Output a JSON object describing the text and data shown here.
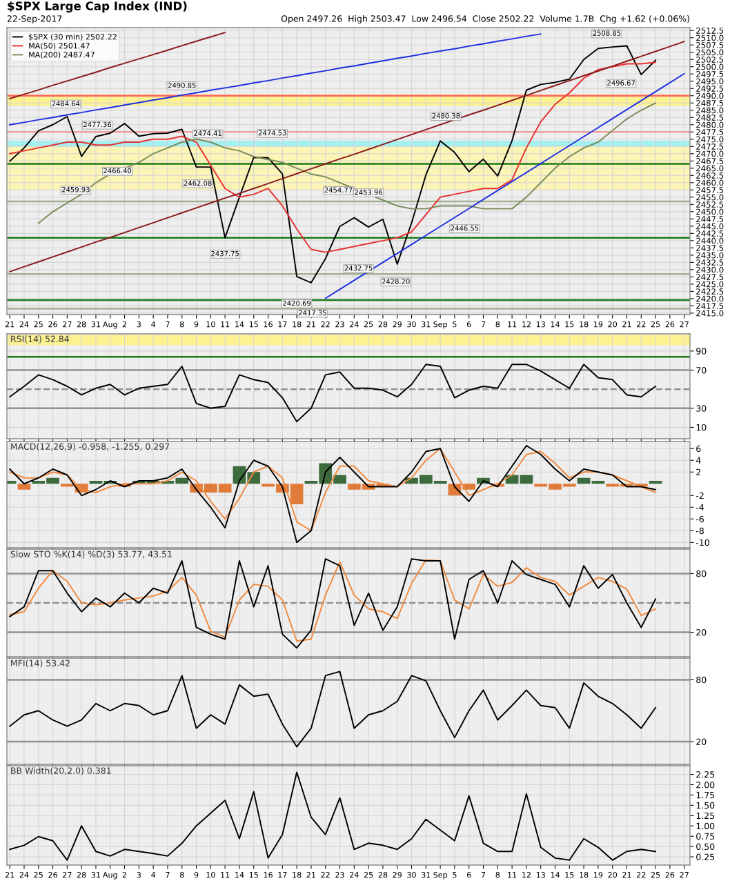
{
  "chart_data": [
    {
      "type": "line",
      "title": "$SPX Large Cap Index (IND)",
      "subtitle": "22-Sep-2017",
      "categories": [
        "21",
        "24",
        "25",
        "26",
        "27",
        "28",
        "31",
        "Aug",
        "2",
        "3",
        "4",
        "7",
        "8",
        "9",
        "10",
        "11",
        "14",
        "15",
        "16",
        "17",
        "18",
        "21",
        "22",
        "23",
        "24",
        "25",
        "28",
        "29",
        "30",
        "31",
        "Sep",
        "5",
        "6",
        "7",
        "8",
        "11",
        "12",
        "13",
        "14",
        "15",
        "18",
        "19",
        "20",
        "21",
        "22",
        "25",
        "26",
        "27"
      ],
      "ylim": [
        2414.5,
        2513.5
      ],
      "yticks": [
        {
          "value": 2415,
          "label": "2415.0"
        },
        {
          "value": 2417.5,
          "label": "2417.5"
        },
        {
          "value": 2420,
          "label": "2420.0"
        },
        {
          "value": 2422.5,
          "label": "2422.5"
        },
        {
          "value": 2425,
          "label": "2425.0"
        },
        {
          "value": 2427.5,
          "label": "2427.5"
        },
        {
          "value": 2430,
          "label": "2430.0"
        },
        {
          "value": 2432.5,
          "label": "2432.5"
        },
        {
          "value": 2435,
          "label": "2435.0"
        },
        {
          "value": 2437.5,
          "label": "2437.5"
        },
        {
          "value": 2440,
          "label": "2440.0"
        },
        {
          "value": 2442.5,
          "label": "2442.5"
        },
        {
          "value": 2445,
          "label": "2445.0"
        },
        {
          "value": 2447.5,
          "label": "2447.5"
        },
        {
          "value": 2450,
          "label": "2450.0"
        },
        {
          "value": 2452.5,
          "label": "2452.5"
        },
        {
          "value": 2455,
          "label": "2455.0"
        },
        {
          "value": 2457.5,
          "label": "2457.5"
        },
        {
          "value": 2460,
          "label": "2460.0"
        },
        {
          "value": 2462.5,
          "label": "2462.5"
        },
        {
          "value": 2465,
          "label": "2465.0"
        },
        {
          "value": 2467.5,
          "label": "2467.5"
        },
        {
          "value": 2470,
          "label": "2470.0"
        },
        {
          "value": 2472.5,
          "label": "2472.5"
        },
        {
          "value": 2475,
          "label": "2475.0"
        },
        {
          "value": 2477.5,
          "label": "2477.5"
        },
        {
          "value": 2480,
          "label": "2480.0"
        },
        {
          "value": 2482.5,
          "label": "2482.5"
        },
        {
          "value": 2485,
          "label": "2485.0"
        },
        {
          "value": 2487.5,
          "label": "2487.5"
        },
        {
          "value": 2490,
          "label": "2490.0"
        },
        {
          "value": 2492.5,
          "label": "2492.5"
        },
        {
          "value": 2495,
          "label": "2495.0"
        },
        {
          "value": 2497.5,
          "label": "2497.5"
        },
        {
          "value": 2500,
          "label": "2500.0"
        },
        {
          "value": 2502.5,
          "label": "2502.5"
        },
        {
          "value": 2505,
          "label": "2505.0"
        },
        {
          "value": 2507.5,
          "label": "2507.5"
        },
        {
          "value": 2510,
          "label": "2510.0"
        },
        {
          "value": 2512.5,
          "label": "2512.5"
        }
      ],
      "grid": true,
      "legend": "top left",
      "series": [
        {
          "name": "$SPX (30 min) 2502.22",
          "color": "#000000",
          "values": [
            2467.4,
            2472.0,
            2477.9,
            2480.0,
            2482.8,
            2469.1,
            2475.9,
            2477.1,
            2480.4,
            2476.0,
            2476.9,
            2477.1,
            2478.4,
            2465.4,
            2465.4,
            2441.0,
            2455.0,
            2468.7,
            2468.6,
            2463.0,
            2427.6,
            2425.5,
            2433.8,
            2444.9,
            2447.9,
            2444.7,
            2447.4,
            2431.9,
            2446.1,
            2462.7,
            2474.4,
            2470.4,
            2463.8,
            2468.1,
            2462.3,
            2474.5,
            2491.9,
            2493.9,
            2494.6,
            2495.7,
            2502.5,
            2506.3,
            2506.8,
            2507.2,
            2497.3,
            2502.2,
            null,
            null
          ]
        },
        {
          "name": "MA(50) 2501.47",
          "color": "#e83030",
          "values": [
            2470,
            2471,
            2472,
            2473,
            2474,
            2474,
            2473,
            2473,
            2474,
            2474,
            2475,
            2475,
            2476,
            2474,
            2466,
            2458,
            2455,
            2456,
            2458,
            2452,
            2444,
            2437,
            2436,
            2437,
            2438,
            2439,
            2440,
            2441,
            2443,
            2449,
            2455,
            2456,
            2457,
            2458,
            2458,
            2461,
            2472,
            2481,
            2487,
            2491,
            2496,
            2499,
            2500,
            2501,
            2501,
            2501.5,
            null,
            null
          ]
        },
        {
          "name": "MA(200) 2487.47",
          "color": "#7a8a5a",
          "values": [
            null,
            null,
            2446,
            2450,
            2453,
            2456,
            2460,
            2463,
            2465,
            2467,
            2470,
            2472,
            2474,
            2475,
            2474,
            2472,
            2471,
            2469,
            2468,
            2467,
            2465,
            2463,
            2462,
            2460,
            2458,
            2456,
            2454,
            2452,
            2451,
            2451,
            2452,
            2452,
            2452,
            2451,
            2451,
            2451,
            2455,
            2460,
            2465,
            2469,
            2472,
            2474,
            2478,
            2482,
            2485,
            2487.5,
            null,
            null
          ]
        },
        {
          "color": "#1f2fe0",
          "values": [
            2480,
            2480.8,
            2481.7,
            2482.5,
            2483.4,
            2484.2,
            2485.1,
            2485.9,
            2486.8,
            2487.6,
            2488.5,
            2489.3,
            2490.2,
            2491.0,
            2491.9,
            2492.7,
            2493.5,
            2494.4,
            2495.2,
            2496.1,
            2496.9,
            2497.8,
            2498.6,
            2499.5,
            2500.3,
            2501.2,
            2502.0,
            2502.9,
            2503.7,
            2504.6,
            2505.4,
            2506.2,
            2507.1,
            2507.9,
            2508.8,
            2509.6,
            2510.5,
            2511.3,
            null,
            null,
            null,
            null,
            null,
            null,
            null,
            null,
            null,
            null
          ]
        },
        {
          "color": "#1f2fe0",
          "values": [
            null,
            null,
            null,
            null,
            null,
            null,
            null,
            null,
            null,
            null,
            null,
            null,
            null,
            null,
            null,
            null,
            null,
            null,
            null,
            null,
            null,
            null,
            2420.1,
            2423.2,
            2426.3,
            2429.4,
            2432.5,
            2435.6,
            2438.7,
            2441.8,
            2444.9,
            2448.0,
            2451.1,
            2454.2,
            2457.3,
            2460.4,
            2463.5,
            2466.6,
            2469.7,
            2472.8,
            2475.9,
            2479.0,
            2482.1,
            2485.2,
            2488.3,
            2491.4,
            2494.5,
            2497.6
          ]
        },
        {
          "color": "#8b1a1a",
          "values": [
            2429.3,
            2431.0,
            2432.7,
            2434.4,
            2436.1,
            2437.8,
            2439.5,
            2441.1,
            2442.8,
            2444.5,
            2446.2,
            2447.9,
            2449.6,
            2451.3,
            2453.0,
            2454.7,
            2456.3,
            2458.0,
            2459.7,
            2461.4,
            2463.1,
            2464.8,
            2466.5,
            2468.2,
            2469.8,
            2471.5,
            2473.2,
            2474.9,
            2476.6,
            2478.3,
            2480.0,
            2481.7,
            2483.4,
            2485.0,
            2486.7,
            2488.4,
            2490.1,
            2491.8,
            2493.5,
            2495.2,
            2496.9,
            2498.5,
            2500.2,
            2501.9,
            2503.6,
            2505.3,
            2507.0,
            2508.7
          ]
        },
        {
          "color": "#8b1a1a",
          "values": [
            2489.0,
            2490.5,
            2492.0,
            2493.6,
            2495.1,
            2496.6,
            2498.1,
            2499.7,
            2501.2,
            2502.7,
            2504.2,
            2505.7,
            2507.3,
            2508.8,
            2510.3,
            2511.8,
            null,
            null,
            null,
            null,
            null,
            null,
            null,
            null,
            null,
            null,
            null,
            null,
            null,
            null,
            null,
            null,
            null,
            null,
            null,
            null,
            null,
            null,
            null,
            null,
            null,
            null,
            null,
            null,
            null,
            null,
            null,
            null
          ]
        }
      ],
      "bands": [
        {
          "axis": "y",
          "from": 2486.5,
          "to": 2490.5,
          "color": "#fff27a"
        },
        {
          "axis": "y",
          "from": 2472.5,
          "to": 2474.5,
          "color": "#8ff0f0"
        },
        {
          "axis": "y",
          "from": 2457.5,
          "to": 2472.5,
          "color": "#fff6a8"
        }
      ],
      "ref_lines": [
        {
          "axis": "y",
          "value": 2490,
          "color": "#ff6060"
        },
        {
          "axis": "y",
          "value": 2477.5,
          "color": "#f0a0a0"
        },
        {
          "axis": "y",
          "value": 2466.5,
          "color": "#1a7a1a"
        },
        {
          "axis": "y",
          "value": 2453.5,
          "color": "#a0b090"
        },
        {
          "axis": "y",
          "value": 2441,
          "color": "#1a7a1a"
        },
        {
          "axis": "y",
          "value": 2428.5,
          "color": "#a0b090"
        },
        {
          "axis": "y",
          "value": 2419.5,
          "color": "#1a7a1a"
        },
        {
          "axis": "y",
          "value": 2416.5,
          "color": "#a0b090"
        }
      ],
      "annotations": [
        "Open 2497.26  High 2503.47  Low 2496.54  Close 2502.22  Volume 1.7B  Chg +1.62 (+0.06%)",
        "2484.64",
        "2477.36",
        "2490.85",
        "2474.41",
        "2474.53",
        "2480.38",
        "2508.85",
        "2496.67",
        "2466.40",
        "2459.93",
        "2462.08",
        "2437.75",
        "2454.77",
        "2453.96",
        "2432.75",
        "2428.20",
        "2420.69",
        "2417.35",
        "2446.55"
      ]
    },
    {
      "type": "line",
      "title": "RSI(14) 52.84",
      "tick_labels": "y",
      "categories": [
        null,
        null,
        null,
        null,
        null,
        null,
        null,
        null,
        null,
        null,
        null,
        null,
        null,
        null,
        null,
        null,
        null,
        null,
        null,
        null,
        null,
        null,
        null,
        null,
        null,
        null,
        null,
        null,
        null,
        null,
        null,
        null,
        null,
        null,
        null,
        null,
        null,
        null,
        null,
        null,
        null,
        null,
        null,
        null,
        null,
        null,
        null,
        null
      ],
      "ylim": [
        -2,
        108
      ],
      "yticks": [
        10,
        30,
        70,
        90
      ],
      "grid": true,
      "series": [
        {
          "color": "#000000",
          "values": [
            42,
            53,
            65,
            60,
            53,
            44,
            51,
            55,
            44,
            51,
            53,
            55,
            74,
            35,
            30,
            32,
            65,
            60,
            57,
            41,
            16,
            30,
            65,
            68,
            51,
            51,
            49,
            42,
            55,
            76,
            74,
            41,
            49,
            53,
            51,
            76,
            76,
            69,
            60,
            51,
            76,
            62,
            60,
            44,
            42,
            53,
            null,
            null
          ]
        }
      ],
      "bands": [
        {
          "axis": "y",
          "from": 96,
          "to": 107,
          "color": "#fff27a"
        }
      ],
      "ref_lines": [
        {
          "axis": "y",
          "value": 70,
          "color": "#909090"
        },
        {
          "axis": "y",
          "value": 30,
          "color": "#909090"
        },
        {
          "axis": "y",
          "value": 50,
          "color": "#909090",
          "line_style": "dashed"
        },
        {
          "axis": "y",
          "value": 84,
          "color": "#1a7a1a"
        }
      ]
    },
    {
      "type": "line",
      "title": "MACD(12,26,9) -0.958, -1.255, 0.297",
      "tick_labels": "y",
      "categories": [
        null,
        null,
        null,
        null,
        null,
        null,
        null,
        null,
        null,
        null,
        null,
        null,
        null,
        null,
        null,
        null,
        null,
        null,
        null,
        null,
        null,
        null,
        null,
        null,
        null,
        null,
        null,
        null,
        null,
        null,
        null,
        null,
        null,
        null,
        null,
        null,
        null,
        null,
        null,
        null,
        null,
        null,
        null,
        null,
        null,
        null,
        null,
        null
      ],
      "ylim": [
        -10.9,
        7.2
      ],
      "yticks": [
        -10,
        -8,
        -6,
        -4,
        -2,
        2,
        4,
        6
      ],
      "grid": true,
      "series": [
        {
          "type": "bar",
          "colors": [
            "#3d6b3d",
            "#e07b39",
            "#3d6b3d",
            "#3d6b3d",
            "#e07b39",
            "#e07b39",
            "#3d6b3d",
            "#3d6b3d",
            "#e07b39",
            "#3d6b3d",
            "#3d6b3d",
            "#3d6b3d",
            "#3d6b3d",
            "#e07b39",
            "#e07b39",
            "#e07b39",
            "#3d6b3d",
            "#3d6b3d",
            "#e07b39",
            "#e07b39",
            "#e07b39",
            "#3d6b3d",
            "#3d6b3d",
            "#3d6b3d",
            "#e07b39",
            "#e07b39",
            "#e07b39",
            "#3d6b3d",
            "#3d6b3d",
            "#3d6b3d",
            "#3d6b3d",
            "#e07b39",
            "#e07b39",
            "#3d6b3d",
            "#e07b39",
            "#3d6b3d",
            "#3d6b3d",
            "#e07b39",
            "#e07b39",
            "#e07b39",
            "#3d6b3d",
            "#3d6b3d",
            "#e07b39",
            "#e07b39",
            "#e07b39",
            "#3d6b3d",
            "#3d6b3d",
            "#3d6b3d"
          ],
          "values": [
            0.5,
            -1.0,
            0.5,
            1.0,
            -0.5,
            -1.5,
            0.5,
            0.5,
            -0.5,
            0.5,
            0.5,
            0.5,
            1.0,
            -1.5,
            -1.5,
            -1.5,
            3.0,
            2.0,
            -0.5,
            -1.5,
            -3.5,
            0.5,
            3.5,
            1.5,
            -1.0,
            -1.0,
            -0.5,
            0.0,
            1.0,
            1.5,
            0.5,
            -2.0,
            -1.0,
            1.0,
            -0.5,
            1.5,
            1.5,
            -0.5,
            -1.0,
            -0.5,
            1.0,
            0.5,
            -0.5,
            -0.5,
            -0.5,
            0.5,
            null,
            null
          ]
        },
        {
          "color": "#f08a40",
          "values": [
            2.0,
            1.0,
            1.0,
            2.0,
            1.5,
            -1.0,
            -1.5,
            -0.5,
            0.0,
            0.0,
            0.0,
            0.5,
            2.0,
            0.5,
            -3.0,
            -6.0,
            -2.5,
            2.0,
            3.0,
            1.0,
            -6.5,
            -8.0,
            -1.5,
            3.0,
            3.0,
            0.5,
            0.0,
            -0.5,
            1.0,
            4.0,
            6.0,
            2.0,
            -2.0,
            -1.0,
            0.0,
            1.5,
            5.0,
            5.5,
            3.5,
            1.0,
            2.0,
            2.0,
            1.5,
            0.5,
            -0.5,
            -1.5,
            null,
            null
          ]
        },
        {
          "color": "#000000",
          "values": [
            2.5,
            0.0,
            1.0,
            2.5,
            1.5,
            -2.0,
            -1.0,
            0.5,
            -0.5,
            0.5,
            0.5,
            1.0,
            2.5,
            -1.0,
            -4.0,
            -7.5,
            0.5,
            4.0,
            3.0,
            -0.5,
            -10.0,
            -8.0,
            2.0,
            4.5,
            2.0,
            -0.5,
            -0.5,
            -0.5,
            2.0,
            5.5,
            6.0,
            -0.5,
            -3.0,
            0.5,
            -0.5,
            3.0,
            6.5,
            5.0,
            2.5,
            0.5,
            2.5,
            2.0,
            1.5,
            -0.5,
            -0.5,
            -1.0,
            null,
            null
          ]
        }
      ]
    },
    {
      "type": "line",
      "title": "Slow STO %K(14) %D(3) 53.77, 43.51",
      "tick_labels": "y",
      "categories": [
        null,
        null,
        null,
        null,
        null,
        null,
        null,
        null,
        null,
        null,
        null,
        null,
        null,
        null,
        null,
        null,
        null,
        null,
        null,
        null,
        null,
        null,
        null,
        null,
        null,
        null,
        null,
        null,
        null,
        null,
        null,
        null,
        null,
        null,
        null,
        null,
        null,
        null,
        null,
        null,
        null,
        null,
        null,
        null,
        null,
        null,
        null,
        null
      ],
      "ylim": [
        -5,
        105
      ],
      "yticks": [
        20,
        80
      ],
      "grid": true,
      "series": [
        {
          "color": "#f08a40",
          "values": [
            38,
            41,
            65,
            83,
            72,
            50,
            48,
            50,
            53,
            55,
            57,
            62,
            76,
            58,
            21,
            15,
            53,
            69,
            67,
            53,
            11,
            13,
            58,
            92,
            58,
            44,
            41,
            34,
            70,
            94,
            93,
            53,
            44,
            79,
            67,
            71,
            86,
            76,
            72,
            58,
            67,
            76,
            72,
            64,
            37,
            44,
            null,
            null
          ]
        },
        {
          "color": "#000000",
          "values": [
            36,
            46,
            83,
            83,
            60,
            41,
            55,
            46,
            60,
            50,
            65,
            60,
            93,
            25,
            18,
            13,
            93,
            46,
            88,
            18,
            4,
            22,
            95,
            88,
            27,
            60,
            22,
            46,
            95,
            93,
            93,
            13,
            74,
            83,
            50,
            93,
            79,
            74,
            69,
            46,
            88,
            65,
            79,
            50,
            25,
            54,
            null,
            null
          ]
        }
      ],
      "ref_lines": [
        {
          "axis": "y",
          "value": 80,
          "color": "#909090"
        },
        {
          "axis": "y",
          "value": 20,
          "color": "#909090"
        },
        {
          "axis": "y",
          "value": 50,
          "color": "#909090",
          "line_style": "dashed"
        }
      ]
    },
    {
      "type": "line",
      "title": "MFI(14) 53.42",
      "tick_labels": "y",
      "categories": [
        null,
        null,
        null,
        null,
        null,
        null,
        null,
        null,
        null,
        null,
        null,
        null,
        null,
        null,
        null,
        null,
        null,
        null,
        null,
        null,
        null,
        null,
        null,
        null,
        null,
        null,
        null,
        null,
        null,
        null,
        null,
        null,
        null,
        null,
        null,
        null,
        null,
        null,
        null,
        null,
        null,
        null,
        null,
        null,
        null,
        null,
        null,
        null
      ],
      "ylim": [
        -2,
        101
      ],
      "yticks": [
        20,
        80
      ],
      "grid": true,
      "series": [
        {
          "color": "#000000",
          "values": [
            35,
            46,
            50,
            41,
            35,
            41,
            57,
            50,
            57,
            55,
            46,
            50,
            84,
            33,
            46,
            37,
            75,
            64,
            66,
            37,
            15,
            33,
            84,
            88,
            33,
            46,
            50,
            59,
            84,
            79,
            50,
            24,
            50,
            70,
            41,
            55,
            70,
            55,
            53,
            33,
            77,
            64,
            57,
            46,
            33,
            53,
            null,
            null
          ]
        }
      ],
      "ref_lines": [
        {
          "axis": "y",
          "value": 80,
          "color": "#909090"
        },
        {
          "axis": "y",
          "value": 20,
          "color": "#909090"
        }
      ]
    },
    {
      "type": "line",
      "title": "BB Width(20,2.0) 0.381",
      "categories": [
        "21",
        "24",
        "25",
        "26",
        "27",
        "28",
        "31",
        "Aug",
        "2",
        "3",
        "4",
        "7",
        "8",
        "9",
        "10",
        "11",
        "14",
        "15",
        "16",
        "17",
        "18",
        "21",
        "22",
        "23",
        "24",
        "25",
        "28",
        "29",
        "30",
        "31",
        "Sep",
        "5",
        "6",
        "7",
        "8",
        "11",
        "12",
        "13",
        "14",
        "15",
        "18",
        "19",
        "20",
        "21",
        "22",
        "25",
        "26",
        "27"
      ],
      "ylim": [
        0.05,
        2.46
      ],
      "yticks": [
        0.25,
        {
          "value": 0.5,
          "label": "0.50"
        },
        0.75,
        {
          "value": 1.0,
          "label": "1.00"
        },
        1.25,
        {
          "value": 1.5,
          "label": "1.50"
        },
        1.75,
        {
          "value": 2.0,
          "label": "2.00"
        },
        2.25
      ],
      "grid": true,
      "series": [
        {
          "color": "#000000",
          "values": [
            0.43,
            0.53,
            0.74,
            0.64,
            0.17,
            1.0,
            0.38,
            0.27,
            0.43,
            0.38,
            0.33,
            0.27,
            0.58,
            1.0,
            1.31,
            1.62,
            0.69,
            1.83,
            0.22,
            0.79,
            2.3,
            1.21,
            0.79,
            1.68,
            0.43,
            0.58,
            0.53,
            0.43,
            0.69,
            1.16,
            0.9,
            0.64,
            1.73,
            0.58,
            0.38,
            0.38,
            1.78,
            0.48,
            0.22,
            0.17,
            0.69,
            0.48,
            0.17,
            0.38,
            0.43,
            0.38,
            null,
            null
          ]
        }
      ]
    }
  ]
}
